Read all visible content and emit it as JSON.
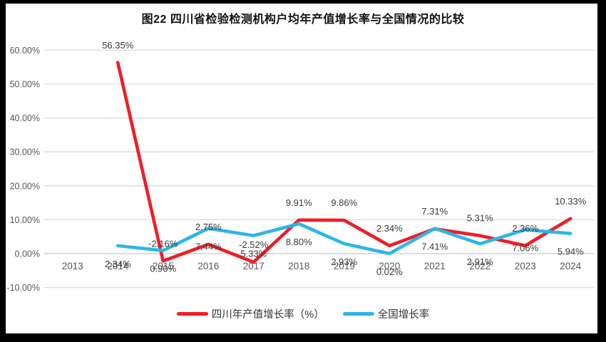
{
  "title": "图22  四川省检验检测机构户均年产值增长率与全国情况的比较",
  "legend": [
    {
      "label": "四川年产值增长率（%）",
      "color": "#EF1D26"
    },
    {
      "label": "全国增长率",
      "color": "#2DB5E9"
    }
  ],
  "colors": {
    "series_red": "#EF1D26",
    "series_blue": "#2DB5E9",
    "gridline": "#D9D9D9",
    "zero_line": "#C6C6C6",
    "axis_text": "#595959",
    "data_label_text": "#3B3B3B",
    "frame": "#000000",
    "background": "#FFFFFF"
  },
  "chart_data": {
    "type": "line",
    "title": "图22  四川省检验检测机构户均年产值增长率与全国情况的比较",
    "categories": [
      "2013",
      "2014",
      "2015",
      "2016",
      "2017",
      "2018",
      "2019",
      "2020",
      "2021",
      "2022",
      "2023",
      "2024"
    ],
    "series": [
      {
        "name": "四川年产值增长率（%）",
        "color": "#EF1D26",
        "label_position": "above",
        "values": [
          null,
          56.35,
          -2.16,
          2.75,
          -2.52,
          9.91,
          9.86,
          2.34,
          7.31,
          5.31,
          2.36,
          10.33
        ]
      },
      {
        "name": "全国增长率",
        "color": "#2DB5E9",
        "label_position": "below",
        "values": [
          null,
          2.34,
          0.9,
          7.44,
          5.33,
          8.8,
          2.93,
          0.02,
          7.41,
          2.91,
          7.06,
          5.94
        ]
      }
    ],
    "xlabel": "",
    "ylabel": "",
    "ylim": [
      -10,
      60
    ],
    "y_ticks": [
      "60.00%",
      "50.00%",
      "40.00%",
      "30.00%",
      "20.00%",
      "10.00%",
      "0.00%",
      "-10.00%"
    ],
    "grid": true,
    "legend_position": "bottom",
    "data_label_format": "0.00%"
  }
}
